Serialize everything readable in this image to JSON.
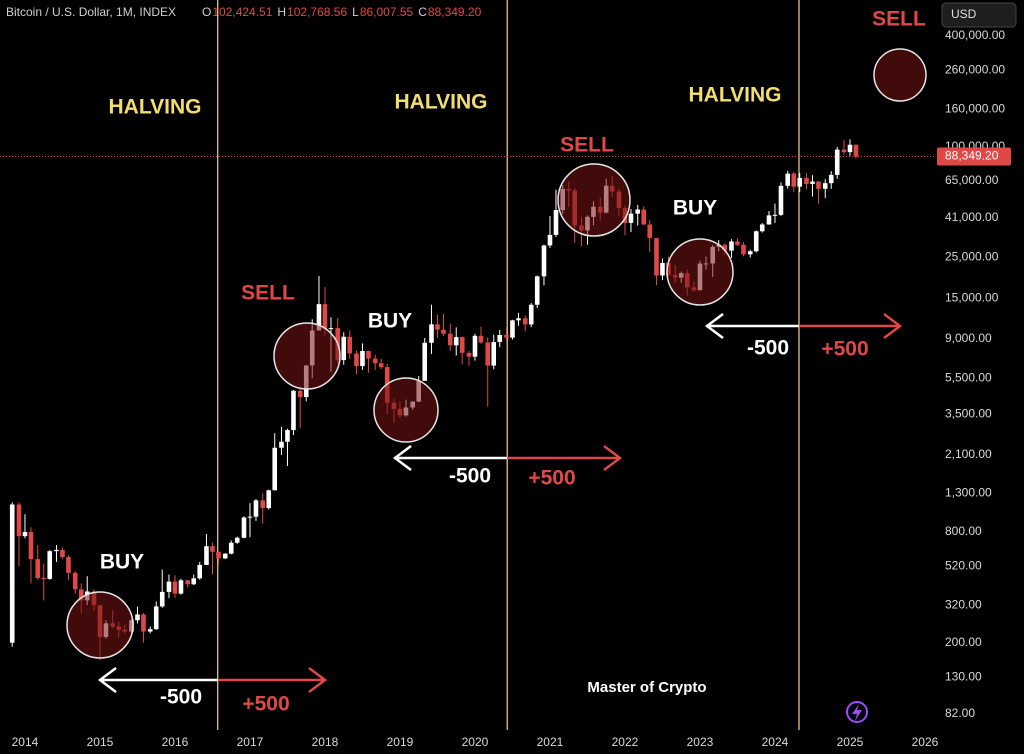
{
  "chart_data": {
    "type": "candlestick",
    "title": "Bitcoin / U.S. Dollar, 1M, INDEX",
    "ohlc_legend": [
      {
        "key": "O",
        "value": "102,424.51"
      },
      {
        "key": "H",
        "value": "102,768.56"
      },
      {
        "key": "L",
        "value": "86,007.55"
      },
      {
        "key": "C",
        "value": "88,349.20"
      }
    ],
    "currency": "USD",
    "log_scale": true,
    "up_color": "#ffffff",
    "down_color": "#e04848",
    "xlim": [
      2013.667,
      2026.067
    ],
    "xticks": [
      2014,
      2015,
      2016,
      2017,
      2018,
      2019,
      2020,
      2021,
      2022,
      2023,
      2024,
      2025,
      2026
    ],
    "ylim": [
      67,
      628000
    ],
    "yticks": [
      {
        "value": 82,
        "label": "82.00"
      },
      {
        "value": 130,
        "label": "130.00"
      },
      {
        "value": 200,
        "label": "200.00"
      },
      {
        "value": 320,
        "label": "320.00"
      },
      {
        "value": 520,
        "label": "520.00"
      },
      {
        "value": 800,
        "label": "800.00"
      },
      {
        "value": 1300,
        "label": "1,300.00"
      },
      {
        "value": 2100,
        "label": "2,100.00"
      },
      {
        "value": 3500,
        "label": "3,500.00"
      },
      {
        "value": 5500,
        "label": "5,500.00"
      },
      {
        "value": 9000,
        "label": "9,000.00"
      },
      {
        "value": 15000,
        "label": "15,000.00"
      },
      {
        "value": 25000,
        "label": "25,000.00"
      },
      {
        "value": 41000,
        "label": "41,000.00"
      },
      {
        "value": 65000,
        "label": "65,000.00"
      },
      {
        "value": 100000,
        "label": "100,000.00"
      },
      {
        "value": 160000,
        "label": "160,000.00"
      },
      {
        "value": 260000,
        "label": "260,000.00"
      },
      {
        "value": 400000,
        "label": "400,000.00"
      }
    ],
    "x": [
      2013.83,
      2013.92,
      2014.0,
      2014.08,
      2014.17,
      2014.25,
      2014.33,
      2014.42,
      2014.5,
      2014.58,
      2014.67,
      2014.75,
      2014.83,
      2014.92,
      2015.0,
      2015.08,
      2015.17,
      2015.25,
      2015.33,
      2015.42,
      2015.5,
      2015.58,
      2015.67,
      2015.75,
      2015.83,
      2015.92,
      2016.0,
      2016.08,
      2016.17,
      2016.25,
      2016.33,
      2016.42,
      2016.5,
      2016.58,
      2016.67,
      2016.75,
      2016.83,
      2016.92,
      2017.0,
      2017.08,
      2017.17,
      2017.25,
      2017.33,
      2017.42,
      2017.5,
      2017.58,
      2017.67,
      2017.75,
      2017.83,
      2017.92,
      2018.0,
      2018.08,
      2018.17,
      2018.25,
      2018.33,
      2018.42,
      2018.5,
      2018.58,
      2018.67,
      2018.75,
      2018.83,
      2018.92,
      2019.0,
      2019.08,
      2019.17,
      2019.25,
      2019.33,
      2019.42,
      2019.5,
      2019.58,
      2019.67,
      2019.75,
      2019.83,
      2019.92,
      2020.0,
      2020.08,
      2020.17,
      2020.25,
      2020.33,
      2020.42,
      2020.5,
      2020.58,
      2020.67,
      2020.75,
      2020.83,
      2020.92,
      2021.0,
      2021.08,
      2021.17,
      2021.25,
      2021.33,
      2021.42,
      2021.5,
      2021.58,
      2021.67,
      2021.75,
      2021.83,
      2021.92,
      2022.0,
      2022.08,
      2022.17,
      2022.25,
      2022.33,
      2022.42,
      2022.5,
      2022.58,
      2022.67,
      2022.75,
      2022.83,
      2022.92,
      2023.0,
      2023.08,
      2023.17,
      2023.25,
      2023.33,
      2023.42,
      2023.5,
      2023.58,
      2023.67,
      2023.75,
      2023.83,
      2023.92,
      2024.0,
      2024.08,
      2024.17,
      2024.25,
      2024.33,
      2024.42,
      2024.5,
      2024.58,
      2024.67,
      2024.75,
      2024.83,
      2024.92,
      2025.0,
      2025.08
    ],
    "ohlc": [
      [
        200,
        1160,
        190,
        1130
      ],
      [
        1130,
        1160,
        520,
        760
      ],
      [
        760,
        1000,
        740,
        800
      ],
      [
        800,
        850,
        420,
        570
      ],
      [
        570,
        680,
        440,
        450
      ],
      [
        450,
        540,
        340,
        445
      ],
      [
        445,
        640,
        440,
        630
      ],
      [
        630,
        680,
        550,
        640
      ],
      [
        640,
        660,
        570,
        585
      ],
      [
        585,
        600,
        440,
        480
      ],
      [
        480,
        490,
        370,
        390
      ],
      [
        390,
        420,
        290,
        340
      ],
      [
        340,
        460,
        320,
        380
      ],
      [
        380,
        390,
        300,
        320
      ],
      [
        320,
        320,
        160,
        215
      ],
      [
        215,
        265,
        210,
        255
      ],
      [
        255,
        300,
        240,
        245
      ],
      [
        245,
        260,
        215,
        235
      ],
      [
        235,
        250,
        225,
        230
      ],
      [
        230,
        268,
        220,
        265
      ],
      [
        265,
        315,
        255,
        285
      ],
      [
        285,
        290,
        200,
        230
      ],
      [
        230,
        245,
        225,
        237
      ],
      [
        237,
        335,
        235,
        315
      ],
      [
        315,
        500,
        310,
        378
      ],
      [
        378,
        470,
        350,
        430
      ],
      [
        430,
        465,
        350,
        370
      ],
      [
        370,
        445,
        365,
        437
      ],
      [
        437,
        440,
        400,
        416
      ],
      [
        416,
        470,
        412,
        448
      ],
      [
        448,
        550,
        440,
        530
      ],
      [
        530,
        780,
        530,
        670
      ],
      [
        670,
        700,
        470,
        625
      ],
      [
        625,
        630,
        530,
        575
      ],
      [
        575,
        615,
        570,
        610
      ],
      [
        610,
        720,
        605,
        700
      ],
      [
        700,
        755,
        690,
        745
      ],
      [
        745,
        975,
        740,
        960
      ],
      [
        960,
        1150,
        750,
        970
      ],
      [
        970,
        1210,
        920,
        1190
      ],
      [
        1190,
        1300,
        890,
        1080
      ],
      [
        1080,
        1360,
        1060,
        1350
      ],
      [
        1350,
        2760,
        1350,
        2300
      ],
      [
        2300,
        2990,
        2100,
        2480
      ],
      [
        2480,
        2920,
        1830,
        2870
      ],
      [
        2870,
        4740,
        2700,
        4700
      ],
      [
        4700,
        4980,
        2950,
        4340
      ],
      [
        4340,
        6470,
        4110,
        6450
      ],
      [
        6450,
        11500,
        5500,
        10000
      ],
      [
        10000,
        19800,
        10000,
        13900
      ],
      [
        13900,
        17200,
        9400,
        10200
      ],
      [
        10200,
        11800,
        5950,
        10300
      ],
      [
        10300,
        11700,
        6600,
        6900
      ],
      [
        6900,
        9770,
        6500,
        9240
      ],
      [
        9240,
        10000,
        7000,
        7500
      ],
      [
        7500,
        7780,
        5750,
        6400
      ],
      [
        6400,
        8500,
        6100,
        7730
      ],
      [
        7730,
        7760,
        5880,
        7030
      ],
      [
        7030,
        7400,
        6100,
        6630
      ],
      [
        6630,
        7000,
        6150,
        6320
      ],
      [
        6320,
        6580,
        3500,
        4040
      ],
      [
        4040,
        4250,
        3150,
        3740
      ],
      [
        3740,
        4100,
        3350,
        3450
      ],
      [
        3450,
        4200,
        3390,
        3810
      ],
      [
        3810,
        4120,
        3700,
        4100
      ],
      [
        4100,
        5640,
        4080,
        5320
      ],
      [
        5320,
        9100,
        5320,
        8570
      ],
      [
        8570,
        13800,
        7450,
        10800
      ],
      [
        10800,
        12200,
        9100,
        10100
      ],
      [
        10100,
        12300,
        9350,
        9600
      ],
      [
        9600,
        10900,
        7750,
        8300
      ],
      [
        8300,
        10400,
        7300,
        9200
      ],
      [
        9200,
        9270,
        6530,
        7550
      ],
      [
        7550,
        7750,
        6420,
        7200
      ],
      [
        7200,
        9600,
        6850,
        9350
      ],
      [
        9350,
        10500,
        8450,
        8600
      ],
      [
        8600,
        9200,
        3850,
        6440
      ],
      [
        6440,
        9460,
        6150,
        8650
      ],
      [
        8650,
        10070,
        8120,
        9450
      ],
      [
        9450,
        10380,
        8900,
        9140
      ],
      [
        9140,
        11440,
        8930,
        11350
      ],
      [
        11350,
        12470,
        10600,
        11650
      ],
      [
        11650,
        12080,
        9880,
        10780
      ],
      [
        10780,
        14100,
        10420,
        13800
      ],
      [
        13800,
        19900,
        13230,
        19700
      ],
      [
        19700,
        29300,
        17600,
        29000
      ],
      [
        29000,
        41950,
        28130,
        33100
      ],
      [
        33100,
        58350,
        32300,
        45200
      ],
      [
        45200,
        61800,
        43000,
        58800
      ],
      [
        58800,
        64850,
        47000,
        57700
      ],
      [
        57700,
        59600,
        30000,
        37300
      ],
      [
        37300,
        41300,
        28800,
        35000
      ],
      [
        35000,
        42300,
        29300,
        41500
      ],
      [
        41500,
        50500,
        37300,
        47100
      ],
      [
        47100,
        52900,
        39600,
        43800
      ],
      [
        43800,
        67000,
        43300,
        61300
      ],
      [
        61300,
        69000,
        53300,
        57000
      ],
      [
        57000,
        59100,
        42000,
        46300
      ],
      [
        46300,
        47900,
        32900,
        38500
      ],
      [
        38500,
        45800,
        34300,
        43200
      ],
      [
        43200,
        48200,
        37200,
        45500
      ],
      [
        45500,
        47400,
        37600,
        37700
      ],
      [
        37700,
        40000,
        26700,
        31800
      ],
      [
        31800,
        31900,
        17600,
        19900
      ],
      [
        19900,
        24600,
        18800,
        23300
      ],
      [
        23300,
        25200,
        19600,
        20050
      ],
      [
        20050,
        22700,
        18150,
        19400
      ],
      [
        19400,
        20900,
        18200,
        20500
      ],
      [
        20500,
        21450,
        15500,
        17150
      ],
      [
        17150,
        18400,
        16300,
        16550
      ],
      [
        16550,
        23950,
        16500,
        23100
      ],
      [
        23100,
        25250,
        21400,
        23150
      ],
      [
        23150,
        29200,
        19550,
        28500
      ],
      [
        28500,
        31000,
        26950,
        29250
      ],
      [
        29250,
        29800,
        25800,
        27200
      ],
      [
        27200,
        31400,
        24800,
        30480
      ],
      [
        30480,
        31800,
        28850,
        29230
      ],
      [
        29230,
        30200,
        25300,
        25940
      ],
      [
        25940,
        27500,
        24900,
        26970
      ],
      [
        26970,
        35000,
        26550,
        34650
      ],
      [
        34650,
        38400,
        34100,
        37720
      ],
      [
        37720,
        44700,
        37600,
        42280
      ],
      [
        42280,
        48970,
        38500,
        42580
      ],
      [
        42580,
        63900,
        41880,
        61200
      ],
      [
        61200,
        73800,
        59100,
        71300
      ],
      [
        71300,
        72800,
        56500,
        60600
      ],
      [
        60600,
        71980,
        56600,
        67500
      ],
      [
        67500,
        71950,
        58400,
        62700
      ],
      [
        62700,
        70000,
        53500,
        64600
      ],
      [
        64600,
        65100,
        49000,
        58970
      ],
      [
        58970,
        66500,
        52600,
        63300
      ],
      [
        63300,
        73600,
        58900,
        70200
      ],
      [
        70200,
        99800,
        66800,
        96400
      ],
      [
        96400,
        108400,
        90500,
        93400
      ],
      [
        93400,
        109600,
        89200,
        102400
      ],
      [
        102424.51,
        102768.56,
        86007.55,
        88349.2
      ]
    ],
    "halvings": [
      {
        "x": 2016.57,
        "label": "HALVING"
      },
      {
        "x": 2020.43,
        "label": "HALVING"
      },
      {
        "x": 2024.32,
        "label": "HALVING"
      }
    ],
    "signals": [
      "BUY",
      "SELL",
      "BUY",
      "SELL",
      "BUY",
      "SELL"
    ],
    "cycle_labels": [
      "-500",
      "+500",
      "-500",
      "+500",
      "-500",
      "+500"
    ],
    "watermark": "Master of Crypto"
  }
}
